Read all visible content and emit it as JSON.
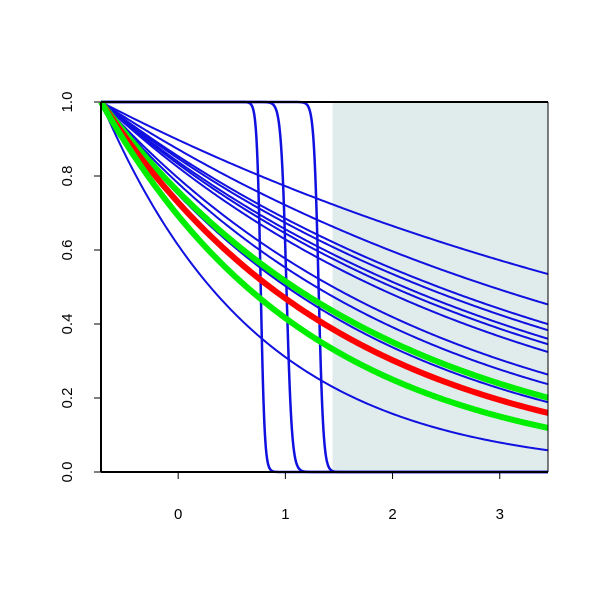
{
  "chart_data": {
    "type": "line",
    "title": "",
    "xlabel": "",
    "ylabel": "",
    "xlim": [
      -0.72,
      3.45
    ],
    "ylim": [
      0.0,
      1.0
    ],
    "x_ticks": [
      0,
      1,
      2,
      3
    ],
    "y_ticks": [
      0.0,
      0.2,
      0.4,
      0.6,
      0.8,
      1.0
    ],
    "x_tick_labels": [
      "0",
      "1",
      "2",
      "3"
    ],
    "y_tick_labels": [
      "0.0",
      "0.2",
      "0.4",
      "0.6",
      "0.8",
      "1.0"
    ],
    "grid": false,
    "legend": "none",
    "shaded_region": {
      "x_from": 1.44,
      "x_to": 3.45,
      "color": "#dfeceb"
    },
    "colors": {
      "blue": "#1010e0",
      "red": "#ff0000",
      "green": "#00ee00",
      "shade": "#dfeceb"
    },
    "series": [
      {
        "color": "blue",
        "width": 2.0,
        "kind": "exp",
        "start": -0.72,
        "rate": 0.15
      },
      {
        "color": "blue",
        "width": 2.0,
        "kind": "exp",
        "start": -0.72,
        "rate": 0.19
      },
      {
        "color": "blue",
        "width": 2.0,
        "kind": "exp",
        "start": -0.72,
        "rate": 0.22
      },
      {
        "color": "blue",
        "width": 2.0,
        "kind": "exp",
        "start": -0.72,
        "rate": 0.23
      },
      {
        "color": "blue",
        "width": 2.0,
        "kind": "exp",
        "start": -0.72,
        "rate": 0.245
      },
      {
        "color": "blue",
        "width": 2.0,
        "kind": "exp",
        "start": -0.72,
        "rate": 0.255
      },
      {
        "color": "blue",
        "width": 2.0,
        "kind": "exp",
        "start": -0.72,
        "rate": 0.27
      },
      {
        "color": "blue",
        "width": 2.0,
        "kind": "exp",
        "start": -0.72,
        "rate": 0.32
      },
      {
        "color": "blue",
        "width": 2.0,
        "kind": "exp",
        "start": -0.72,
        "rate": 0.345
      },
      {
        "color": "blue",
        "width": 2.0,
        "kind": "exp",
        "start": -0.72,
        "rate": 0.38
      },
      {
        "color": "blue",
        "width": 2.0,
        "kind": "exp",
        "start": -0.72,
        "rate": 0.4
      },
      {
        "color": "blue",
        "width": 2.0,
        "kind": "exp",
        "start": -0.72,
        "rate": 0.68
      },
      {
        "color": "blue",
        "width": 2.5,
        "kind": "step",
        "center": 0.77,
        "spread": 0.018
      },
      {
        "color": "blue",
        "width": 2.5,
        "kind": "step",
        "center": 1.01,
        "spread": 0.025
      },
      {
        "color": "blue",
        "width": 2.5,
        "kind": "step",
        "center": 1.31,
        "spread": 0.022
      },
      {
        "color": "green",
        "width": 6.0,
        "kind": "exp",
        "start": -0.72,
        "rate": 0.385
      },
      {
        "color": "red",
        "width": 6.0,
        "kind": "exp",
        "start": -0.72,
        "rate": 0.44
      },
      {
        "color": "green",
        "width": 6.0,
        "kind": "exp",
        "start": -0.72,
        "rate": 0.51
      }
    ]
  }
}
